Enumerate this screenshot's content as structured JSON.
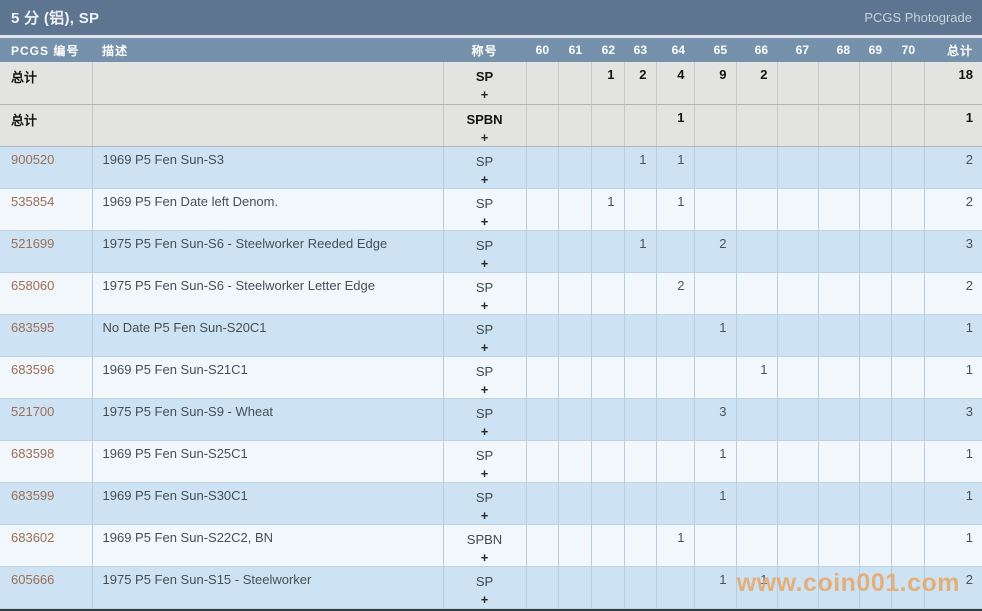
{
  "header": {
    "title": "5 分 (铝), SP",
    "photograde_label": "PCGS Photograde"
  },
  "table": {
    "columns": [
      "PCGS 编号",
      "描述",
      "称号",
      "60",
      "61",
      "62",
      "63",
      "64",
      "65",
      "66",
      "67",
      "68",
      "69",
      "70",
      "总计"
    ],
    "plus_symbol": "+",
    "rows": [
      {
        "kind": "summary",
        "id": "总计",
        "desc": "",
        "designation": "SP",
        "grades": [
          "",
          "",
          "1",
          "2",
          "4",
          "9",
          "2",
          "",
          "",
          "",
          ""
        ],
        "total": "18"
      },
      {
        "kind": "summary",
        "id": "总计",
        "desc": "",
        "designation": "SPBN",
        "grades": [
          "",
          "",
          "",
          "",
          "1",
          "",
          "",
          "",
          "",
          "",
          ""
        ],
        "total": "1"
      },
      {
        "kind": "data",
        "id": "900520",
        "desc": "1969 P5 Fen Sun-S3",
        "designation": "SP",
        "grades": [
          "",
          "",
          "",
          "1",
          "1",
          "",
          "",
          "",
          "",
          "",
          ""
        ],
        "total": "2"
      },
      {
        "kind": "data",
        "id": "535854",
        "desc": "1969 P5 Fen Date left Denom.",
        "designation": "SP",
        "grades": [
          "",
          "",
          "1",
          "",
          "1",
          "",
          "",
          "",
          "",
          "",
          ""
        ],
        "total": "2"
      },
      {
        "kind": "data",
        "id": "521699",
        "desc": "1975 P5 Fen Sun-S6 - Steelworker Reeded Edge",
        "designation": "SP",
        "grades": [
          "",
          "",
          "",
          "1",
          "",
          "2",
          "",
          "",
          "",
          "",
          ""
        ],
        "total": "3"
      },
      {
        "kind": "data",
        "id": "658060",
        "desc": "1975 P5 Fen Sun-S6 - Steelworker Letter Edge",
        "designation": "SP",
        "grades": [
          "",
          "",
          "",
          "",
          "2",
          "",
          "",
          "",
          "",
          "",
          ""
        ],
        "total": "2"
      },
      {
        "kind": "data",
        "id": "683595",
        "desc": "No Date P5 Fen Sun-S20C1",
        "designation": "SP",
        "grades": [
          "",
          "",
          "",
          "",
          "",
          "1",
          "",
          "",
          "",
          "",
          ""
        ],
        "total": "1"
      },
      {
        "kind": "data",
        "id": "683596",
        "desc": "1969 P5 Fen Sun-S21C1",
        "designation": "SP",
        "grades": [
          "",
          "",
          "",
          "",
          "",
          "",
          "1",
          "",
          "",
          "",
          ""
        ],
        "total": "1"
      },
      {
        "kind": "data",
        "id": "521700",
        "desc": "1975 P5 Fen Sun-S9 - Wheat",
        "designation": "SP",
        "grades": [
          "",
          "",
          "",
          "",
          "",
          "3",
          "",
          "",
          "",
          "",
          ""
        ],
        "total": "3"
      },
      {
        "kind": "data",
        "id": "683598",
        "desc": "1969 P5 Fen Sun-S25C1",
        "designation": "SP",
        "grades": [
          "",
          "",
          "",
          "",
          "",
          "1",
          "",
          "",
          "",
          "",
          ""
        ],
        "total": "1"
      },
      {
        "kind": "data",
        "id": "683599",
        "desc": "1969 P5 Fen Sun-S30C1",
        "designation": "SP",
        "grades": [
          "",
          "",
          "",
          "",
          "",
          "1",
          "",
          "",
          "",
          "",
          ""
        ],
        "total": "1"
      },
      {
        "kind": "data",
        "id": "683602",
        "desc": "1969 P5 Fen Sun-S22C2, BN",
        "designation": "SPBN",
        "grades": [
          "",
          "",
          "",
          "",
          "1",
          "",
          "",
          "",
          "",
          "",
          ""
        ],
        "total": "1"
      },
      {
        "kind": "data",
        "id": "605666",
        "desc": "1975 P5 Fen Sun-S15 - Steelworker",
        "designation": "SP",
        "grades": [
          "",
          "",
          "",
          "",
          "",
          "1",
          "1",
          "",
          "",
          "",
          ""
        ],
        "total": "2"
      }
    ]
  },
  "watermark": "www.coin001.com",
  "colors": {
    "title_bar": "#5d7590",
    "header_row": "#7591ab",
    "row_blue": "#cde2f2",
    "row_light": "#f2f7fb",
    "row_summary": "#e3e3e2",
    "pcgs_link": "#9c6f58",
    "watermark": "#e7a666",
    "bottom_border": "#2e3d46"
  }
}
